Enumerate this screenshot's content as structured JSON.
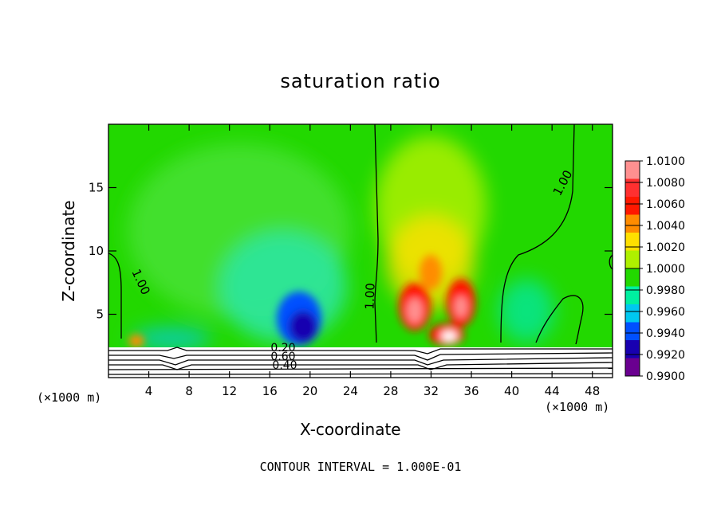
{
  "chart_data": {
    "type": "heatmap",
    "title": "saturation ratio",
    "xlabel": "X-coordinate",
    "ylabel": "Z-coordinate",
    "x_unit": "(×1000 m)",
    "x_unit_right": "(×1000 m)",
    "xlim": [
      0,
      50
    ],
    "ylim": [
      0,
      20
    ],
    "x_ticks": [
      4,
      8,
      12,
      16,
      20,
      24,
      28,
      32,
      36,
      40,
      44,
      48
    ],
    "y_ticks": [
      5,
      10,
      15
    ],
    "colorbar": {
      "levels": [
        "1.0100",
        "1.0080",
        "1.0060",
        "1.0040",
        "1.0020",
        "1.0000",
        "0.9980",
        "0.9960",
        "0.9940",
        "0.9920",
        "0.9900"
      ],
      "colors": [
        "#ff9090",
        "#ff3030",
        "#ff1800",
        "#ff8c00",
        "#ffe000",
        "#aef000",
        "#22d800",
        "#00f0a0",
        "#00c8f0",
        "#0050ff",
        "#1800b0",
        "#6a0090"
      ]
    },
    "contour_labels": [
      "1.00",
      "1.00",
      "1.00",
      "1.00",
      "0.20",
      "0.60",
      "0.40"
    ],
    "footer": "CONTOUR INTERVAL = 1.000E-01"
  }
}
